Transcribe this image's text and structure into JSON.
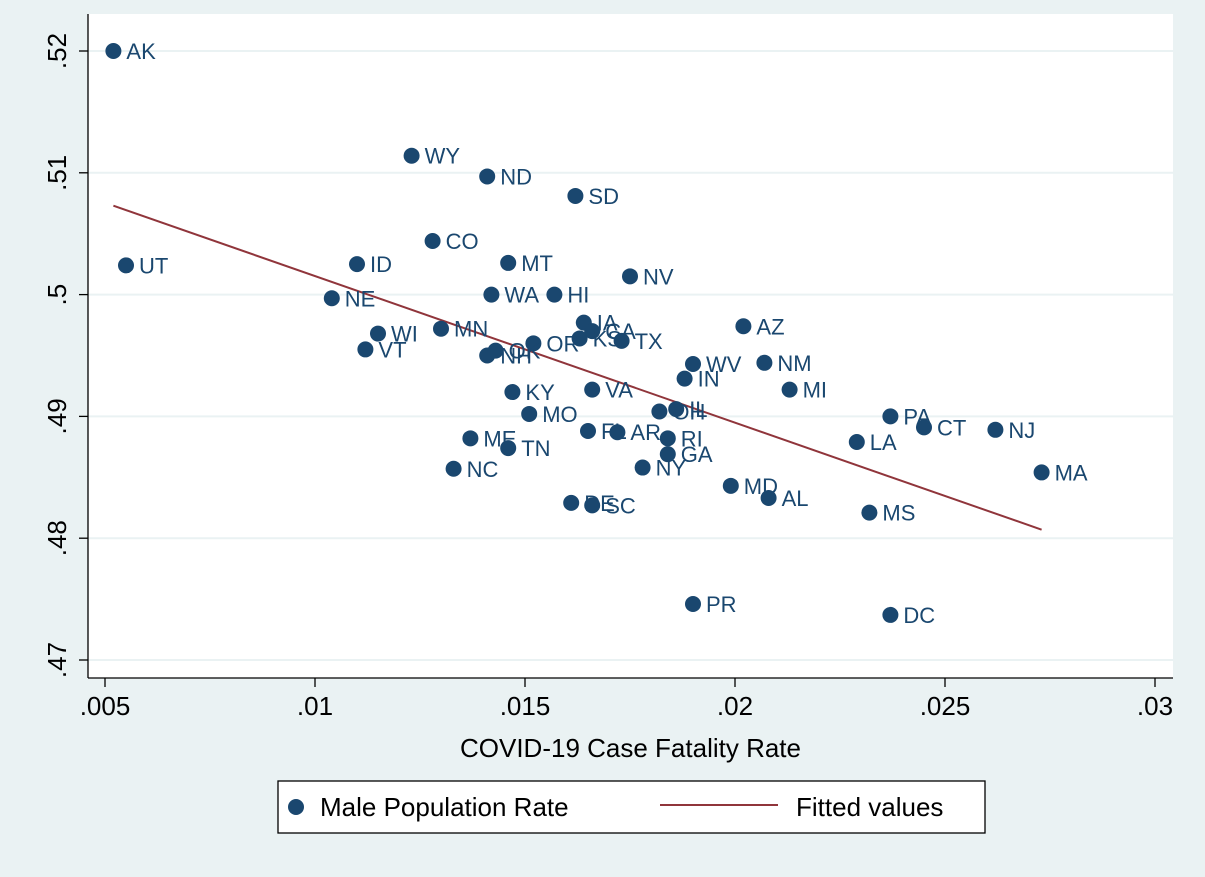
{
  "chart_data": {
    "type": "scatter",
    "title": "",
    "xlabel": "COVID-19 Case Fatality Rate",
    "ylabel": "",
    "xlim": [
      0.005,
      0.03
    ],
    "ylim": [
      0.47,
      0.52
    ],
    "xticks": [
      ".005",
      ".01",
      ".015",
      ".02",
      ".025",
      ".03"
    ],
    "xtick_values": [
      0.005,
      0.01,
      0.015,
      0.02,
      0.025,
      0.03
    ],
    "yticks": [
      ".47",
      ".48",
      ".49",
      ".5",
      ".51",
      ".52"
    ],
    "ytick_values": [
      0.47,
      0.48,
      0.49,
      0.5,
      0.51,
      0.52
    ],
    "grid": true,
    "legend_position": "bottom",
    "series": [
      {
        "name": "Male Population Rate",
        "kind": "scatter",
        "color": "#1a476f",
        "points": [
          {
            "label": "AK",
            "x": 0.0052,
            "y": 0.52
          },
          {
            "label": "UT",
            "x": 0.0055,
            "y": 0.5024
          },
          {
            "label": "WY",
            "x": 0.0123,
            "y": 0.5114
          },
          {
            "label": "ND",
            "x": 0.0141,
            "y": 0.5097
          },
          {
            "label": "SD",
            "x": 0.0162,
            "y": 0.5081
          },
          {
            "label": "CO",
            "x": 0.0128,
            "y": 0.5044
          },
          {
            "label": "ID",
            "x": 0.011,
            "y": 0.5025
          },
          {
            "label": "MT",
            "x": 0.0146,
            "y": 0.5026
          },
          {
            "label": "NV",
            "x": 0.0175,
            "y": 0.5015
          },
          {
            "label": "NE",
            "x": 0.0104,
            "y": 0.4997
          },
          {
            "label": "WA",
            "x": 0.0142,
            "y": 0.5
          },
          {
            "label": "HI",
            "x": 0.0157,
            "y": 0.5
          },
          {
            "label": "IA",
            "x": 0.0164,
            "y": 0.4977
          },
          {
            "label": "AZ",
            "x": 0.0202,
            "y": 0.4974
          },
          {
            "label": "MN",
            "x": 0.013,
            "y": 0.4972
          },
          {
            "label": "CA",
            "x": 0.0166,
            "y": 0.497
          },
          {
            "label": "WI",
            "x": 0.0115,
            "y": 0.4968
          },
          {
            "label": "KS",
            "x": 0.0163,
            "y": 0.4964
          },
          {
            "label": "TX",
            "x": 0.0173,
            "y": 0.4962
          },
          {
            "label": "OR",
            "x": 0.0152,
            "y": 0.496
          },
          {
            "label": "VT",
            "x": 0.0112,
            "y": 0.4955
          },
          {
            "label": "OK",
            "x": 0.0143,
            "y": 0.4954
          },
          {
            "label": "NH",
            "x": 0.0141,
            "y": 0.495
          },
          {
            "label": "WV",
            "x": 0.019,
            "y": 0.4943
          },
          {
            "label": "NM",
            "x": 0.0207,
            "y": 0.4944
          },
          {
            "label": "IN",
            "x": 0.0188,
            "y": 0.4931
          },
          {
            "label": "KY",
            "x": 0.0147,
            "y": 0.492
          },
          {
            "label": "VA",
            "x": 0.0166,
            "y": 0.4922
          },
          {
            "label": "MI",
            "x": 0.0213,
            "y": 0.4922
          },
          {
            "label": "IL",
            "x": 0.0186,
            "y": 0.4906
          },
          {
            "label": "OH",
            "x": 0.0182,
            "y": 0.4904
          },
          {
            "label": "MO",
            "x": 0.0151,
            "y": 0.4902
          },
          {
            "label": "PA",
            "x": 0.0237,
            "y": 0.49
          },
          {
            "label": "CT",
            "x": 0.0245,
            "y": 0.4891
          },
          {
            "label": "NJ",
            "x": 0.0262,
            "y": 0.4889
          },
          {
            "label": "FL",
            "x": 0.0165,
            "y": 0.4888
          },
          {
            "label": "AR",
            "x": 0.0172,
            "y": 0.4887
          },
          {
            "label": "ME",
            "x": 0.0137,
            "y": 0.4882
          },
          {
            "label": "RI",
            "x": 0.0184,
            "y": 0.4882
          },
          {
            "label": "LA",
            "x": 0.0229,
            "y": 0.4879
          },
          {
            "label": "TN",
            "x": 0.0146,
            "y": 0.4874
          },
          {
            "label": "GA",
            "x": 0.0184,
            "y": 0.4869
          },
          {
            "label": "NC",
            "x": 0.0133,
            "y": 0.4857
          },
          {
            "label": "NY",
            "x": 0.0178,
            "y": 0.4858
          },
          {
            "label": "MA",
            "x": 0.0273,
            "y": 0.4854
          },
          {
            "label": "MD",
            "x": 0.0199,
            "y": 0.4843
          },
          {
            "label": "AL",
            "x": 0.0208,
            "y": 0.4833
          },
          {
            "label": "DE",
            "x": 0.0161,
            "y": 0.4829
          },
          {
            "label": "SC",
            "x": 0.0166,
            "y": 0.4827
          },
          {
            "label": "MS",
            "x": 0.0232,
            "y": 0.4821
          },
          {
            "label": "PR",
            "x": 0.019,
            "y": 0.4746
          },
          {
            "label": "DC",
            "x": 0.0237,
            "y": 0.4737
          }
        ]
      },
      {
        "name": "Fitted values",
        "kind": "line",
        "color": "#90353b",
        "x": [
          0.0052,
          0.0273
        ],
        "y": [
          0.5073,
          0.4807
        ]
      }
    ]
  },
  "legend": {
    "items": [
      "Male Population Rate",
      "Fitted values"
    ]
  }
}
